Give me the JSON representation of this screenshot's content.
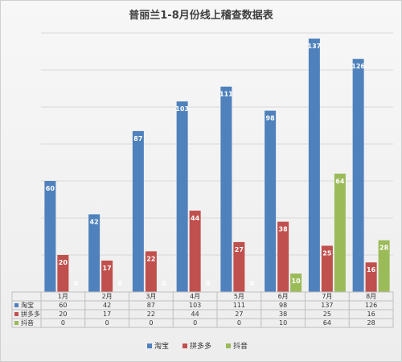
{
  "chart_data": {
    "type": "bar",
    "title": "普丽兰1-8月份线上稽查数据表",
    "categories": [
      "1月",
      "2月",
      "3月",
      "4月",
      "5月",
      "6月",
      "7月",
      "8月"
    ],
    "series": [
      {
        "name": "淘宝",
        "color": "#4f81bd",
        "values": [
          60,
          42,
          87,
          103,
          111,
          98,
          137,
          126
        ]
      },
      {
        "name": "拼多多",
        "color": "#c0504d",
        "values": [
          20,
          17,
          22,
          44,
          27,
          38,
          25,
          16
        ]
      },
      {
        "name": "抖音",
        "color": "#9bbb59",
        "values": [
          0,
          0,
          0,
          0,
          0,
          10,
          64,
          28
        ]
      }
    ],
    "ylim": [
      0,
      140
    ],
    "grid": true,
    "data_table": true,
    "legend_position": "bottom"
  }
}
